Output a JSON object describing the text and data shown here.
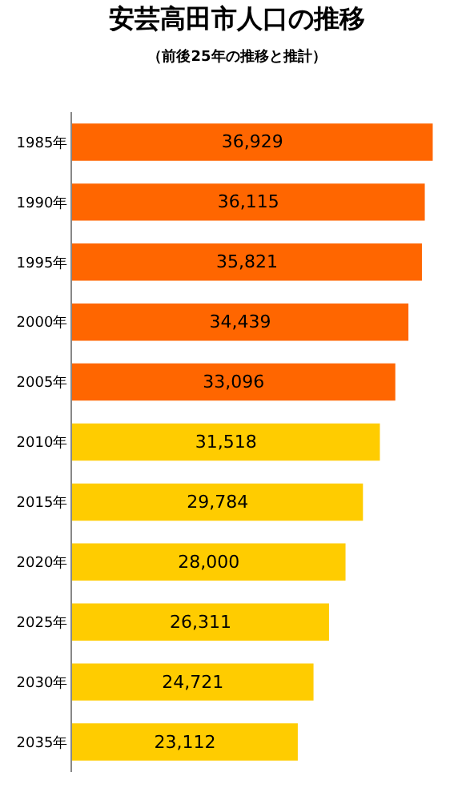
{
  "chart_data": {
    "type": "bar",
    "orientation": "horizontal",
    "title": "安芸高田市人口の推移",
    "subtitle": "（前後25年の推移と推計）",
    "categories": [
      "1985年",
      "1990年",
      "1995年",
      "2000年",
      "2005年",
      "2010年",
      "2015年",
      "2020年",
      "2025年",
      "2030年",
      "2035年"
    ],
    "values": [
      36929,
      36115,
      35821,
      34439,
      33096,
      31518,
      29784,
      28000,
      26311,
      24721,
      23112
    ],
    "colors": [
      "#ff6600",
      "#ff6600",
      "#ff6600",
      "#ff6600",
      "#ff6600",
      "#ffcc00",
      "#ffcc00",
      "#ffcc00",
      "#ffcc00",
      "#ffcc00",
      "#ffcc00"
    ],
    "value_labels": [
      "36,929",
      "36,115",
      "35,821",
      "34,439",
      "33,096",
      "31,518",
      "29,784",
      "28,000",
      "26,311",
      "24,721",
      "23,112"
    ],
    "legend": false,
    "tick_labels": "y"
  }
}
